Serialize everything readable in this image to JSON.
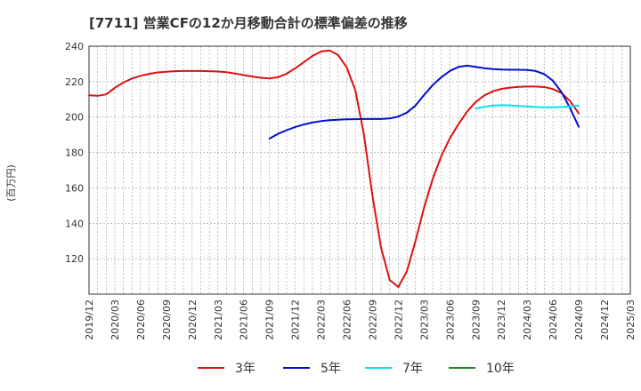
{
  "chart_data": {
    "type": "line",
    "title": "[7711]  営業CFの12か月移動合計の標準偏差の推移",
    "ylabel": "(百万円)",
    "xlabel": "",
    "ylim": [
      100,
      240
    ],
    "yticks": [
      120,
      140,
      160,
      180,
      200,
      220,
      240
    ],
    "x_ticks": [
      "2019/12",
      "2020/03",
      "2020/06",
      "2020/09",
      "2020/12",
      "2021/03",
      "2021/06",
      "2021/09",
      "2021/12",
      "2022/03",
      "2022/06",
      "2022/09",
      "2022/12",
      "2023/03",
      "2023/06",
      "2023/09",
      "2023/12",
      "2024/03",
      "2024/06",
      "2024/09",
      "2024/12",
      "2025/03"
    ],
    "x_range": [
      "2019/12",
      "2025/03"
    ],
    "grid": true,
    "legend_position": "bottom",
    "series": [
      {
        "name": "3年",
        "color": "#dd1111",
        "points": [
          [
            "2019/12",
            212.3
          ],
          [
            "2020/01",
            212.0
          ],
          [
            "2020/02",
            212.8
          ],
          [
            "2020/03",
            216.5
          ],
          [
            "2020/04",
            219.5
          ],
          [
            "2020/05",
            221.8
          ],
          [
            "2020/06",
            223.3
          ],
          [
            "2020/07",
            224.4
          ],
          [
            "2020/08",
            225.2
          ],
          [
            "2020/09",
            225.6
          ],
          [
            "2020/10",
            225.9
          ],
          [
            "2020/11",
            226.0
          ],
          [
            "2020/12",
            226.0
          ],
          [
            "2021/01",
            226.0
          ],
          [
            "2021/02",
            225.9
          ],
          [
            "2021/03",
            225.7
          ],
          [
            "2021/04",
            225.3
          ],
          [
            "2021/05",
            224.6
          ],
          [
            "2021/06",
            223.7
          ],
          [
            "2021/07",
            222.9
          ],
          [
            "2021/08",
            222.2
          ],
          [
            "2021/09",
            221.8
          ],
          [
            "2021/10",
            222.5
          ],
          [
            "2021/11",
            224.5
          ],
          [
            "2021/12",
            227.5
          ],
          [
            "2022/01",
            231.0
          ],
          [
            "2022/02",
            234.5
          ],
          [
            "2022/03",
            237.0
          ],
          [
            "2022/04",
            237.6
          ],
          [
            "2022/05",
            235.0
          ],
          [
            "2022/06",
            228.0
          ],
          [
            "2022/07",
            215.0
          ],
          [
            "2022/08",
            190.0
          ],
          [
            "2022/09",
            155.0
          ],
          [
            "2022/10",
            126.0
          ],
          [
            "2022/11",
            108.0
          ],
          [
            "2022/12",
            104.0
          ],
          [
            "2023/01",
            113.0
          ],
          [
            "2023/02",
            130.0
          ],
          [
            "2023/03",
            149.0
          ],
          [
            "2023/04",
            165.0
          ],
          [
            "2023/05",
            178.0
          ],
          [
            "2023/06",
            188.0
          ],
          [
            "2023/07",
            196.0
          ],
          [
            "2023/08",
            203.0
          ],
          [
            "2023/09",
            208.5
          ],
          [
            "2023/10",
            212.2
          ],
          [
            "2023/11",
            214.5
          ],
          [
            "2023/12",
            215.9
          ],
          [
            "2024/01",
            216.6
          ],
          [
            "2024/02",
            217.0
          ],
          [
            "2024/03",
            217.2
          ],
          [
            "2024/04",
            217.2
          ],
          [
            "2024/05",
            216.9
          ],
          [
            "2024/06",
            215.8
          ],
          [
            "2024/07",
            213.5
          ],
          [
            "2024/08",
            209.0
          ],
          [
            "2024/09",
            202.0
          ]
        ]
      },
      {
        "name": "5年",
        "color": "#0011cc",
        "points": [
          [
            "2021/09",
            187.8
          ],
          [
            "2021/10",
            190.5
          ],
          [
            "2021/11",
            192.6
          ],
          [
            "2021/12",
            194.4
          ],
          [
            "2022/01",
            195.8
          ],
          [
            "2022/02",
            196.9
          ],
          [
            "2022/03",
            197.7
          ],
          [
            "2022/04",
            198.2
          ],
          [
            "2022/05",
            198.5
          ],
          [
            "2022/06",
            198.7
          ],
          [
            "2022/07",
            198.8
          ],
          [
            "2022/08",
            198.9
          ],
          [
            "2022/09",
            198.9
          ],
          [
            "2022/10",
            198.9
          ],
          [
            "2022/11",
            199.2
          ],
          [
            "2022/12",
            200.3
          ],
          [
            "2023/01",
            202.5
          ],
          [
            "2023/02",
            206.5
          ],
          [
            "2023/03",
            212.5
          ],
          [
            "2023/04",
            218.0
          ],
          [
            "2023/05",
            222.5
          ],
          [
            "2023/06",
            226.0
          ],
          [
            "2023/07",
            228.3
          ],
          [
            "2023/08",
            229.0
          ],
          [
            "2023/09",
            228.3
          ],
          [
            "2023/10",
            227.6
          ],
          [
            "2023/11",
            227.1
          ],
          [
            "2023/12",
            226.8
          ],
          [
            "2024/01",
            226.7
          ],
          [
            "2024/02",
            226.7
          ],
          [
            "2024/03",
            226.6
          ],
          [
            "2024/04",
            226.0
          ],
          [
            "2024/05",
            224.2
          ],
          [
            "2024/06",
            220.5
          ],
          [
            "2024/07",
            214.0
          ],
          [
            "2024/08",
            205.0
          ],
          [
            "2024/09",
            194.5
          ]
        ]
      },
      {
        "name": "7年",
        "color": "#00e5ee",
        "points": [
          [
            "2023/09",
            204.8
          ],
          [
            "2023/10",
            205.8
          ],
          [
            "2023/11",
            206.5
          ],
          [
            "2023/12",
            206.7
          ],
          [
            "2024/01",
            206.6
          ],
          [
            "2024/02",
            206.3
          ],
          [
            "2024/03",
            206.0
          ],
          [
            "2024/04",
            205.7
          ],
          [
            "2024/05",
            205.5
          ],
          [
            "2024/06",
            205.5
          ],
          [
            "2024/07",
            205.7
          ],
          [
            "2024/08",
            206.0
          ],
          [
            "2024/09",
            206.5
          ]
        ]
      },
      {
        "name": "10年",
        "color": "#228822",
        "points": []
      }
    ]
  }
}
